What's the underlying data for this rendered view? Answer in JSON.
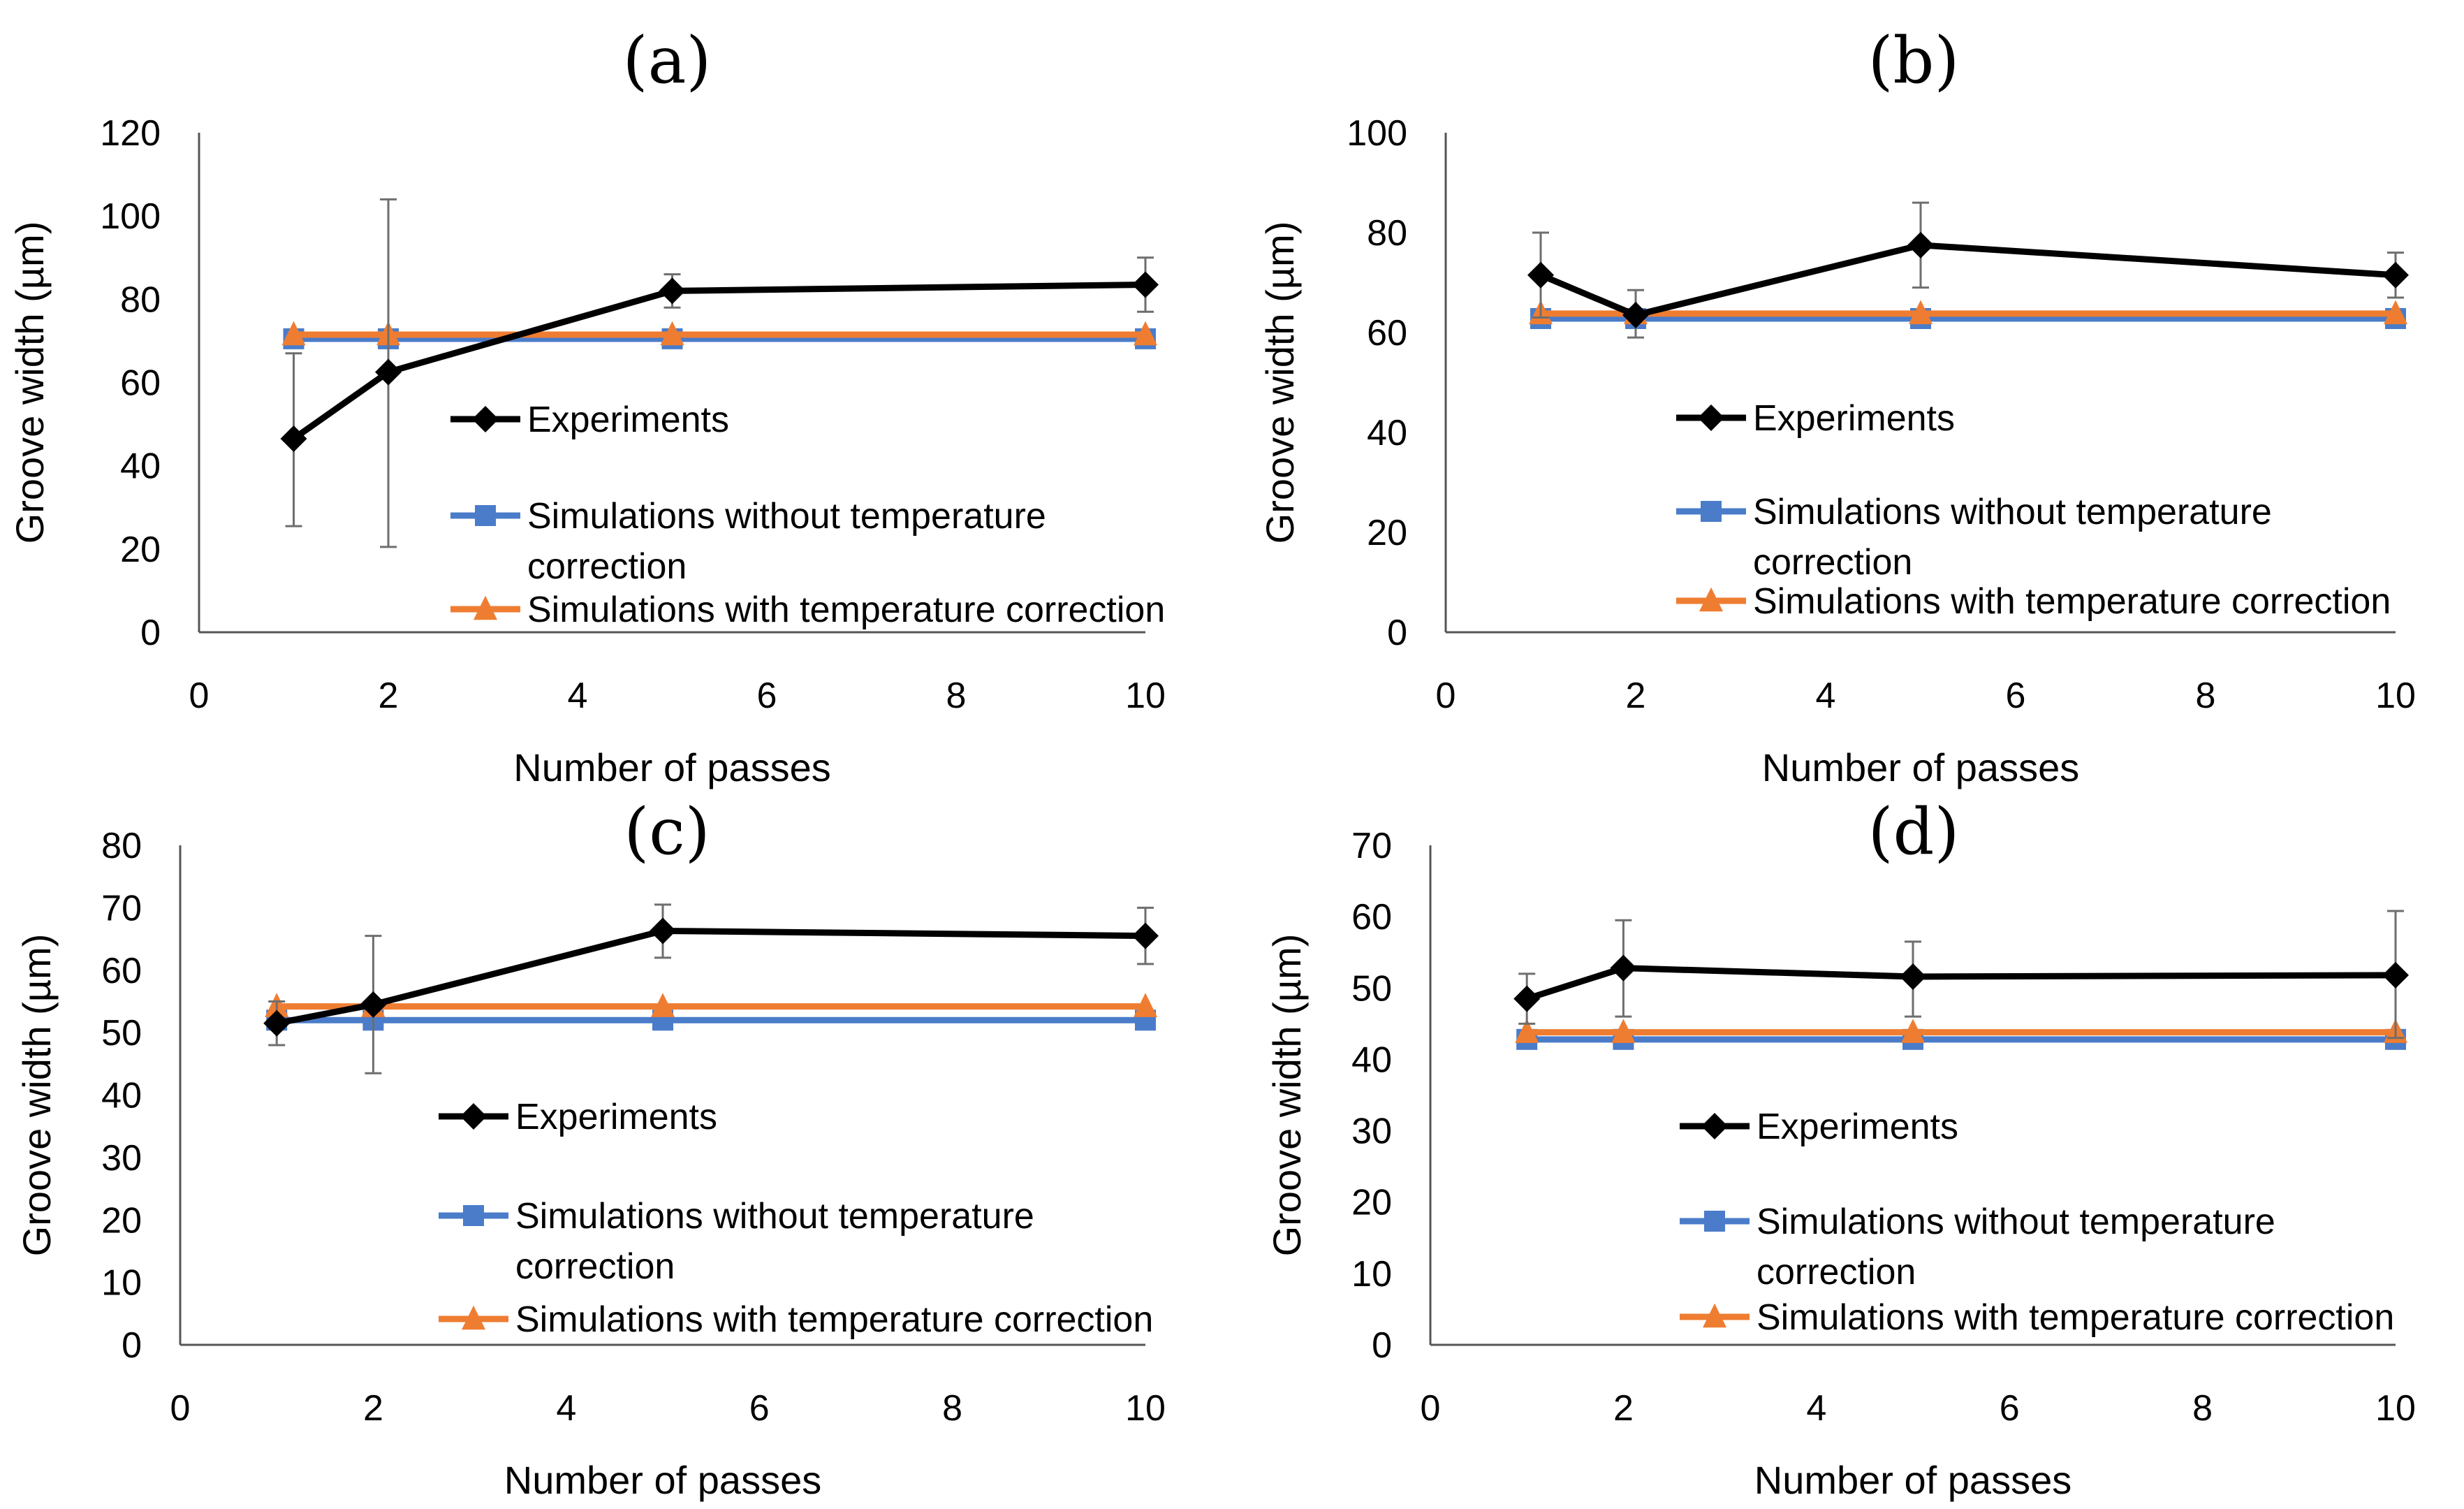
{
  "colors": {
    "experiments": "#000000",
    "sim_without": "#4a7cc9",
    "sim_with": "#ef7d31",
    "axis": "#555555",
    "errorbar": "#6e6e6e"
  },
  "legend": {
    "experiments": "Experiments",
    "sim_without_line1": "Simulations without temperature",
    "sim_without_line2": "correction",
    "sim_with": "Simulations with temperature correction"
  },
  "chart_data": [
    {
      "panel": "(a)",
      "type": "line",
      "xlabel": "Number of passes",
      "ylabel": "Groove width (µm)",
      "xlim": [
        0,
        10
      ],
      "ylim": [
        0,
        120
      ],
      "xticks": [
        "0",
        "2",
        "4",
        "6",
        "8",
        "10"
      ],
      "yticks": [
        "0",
        "20",
        "40",
        "60",
        "80",
        "100",
        "120"
      ],
      "x": [
        1,
        2,
        5,
        10
      ],
      "series": [
        {
          "name": "Experiments",
          "values": [
            46.5,
            62.5,
            82,
            83.5
          ],
          "error_low": [
            25.5,
            20.5,
            78,
            77
          ],
          "error_high": [
            67,
            104,
            86,
            90
          ]
        },
        {
          "name": "Simulations without temperature correction",
          "values": [
            70.5,
            70.5,
            70.5,
            70.5
          ]
        },
        {
          "name": "Simulations with temperature correction",
          "values": [
            71.5,
            71.5,
            71.5,
            71.5
          ]
        }
      ]
    },
    {
      "panel": "(b)",
      "type": "line",
      "xlabel": "Number of passes",
      "ylabel": "Groove width (µm)",
      "xlim": [
        0,
        10
      ],
      "ylim": [
        0,
        100
      ],
      "xticks": [
        "0",
        "2",
        "4",
        "6",
        "8",
        "10"
      ],
      "yticks": [
        "0",
        "20",
        "40",
        "60",
        "80",
        "100"
      ],
      "x": [
        1,
        2,
        5,
        10
      ],
      "series": [
        {
          "name": "Experiments",
          "values": [
            71.5,
            63.5,
            77.5,
            71.5
          ],
          "error_low": [
            63,
            59,
            69,
            67
          ],
          "error_high": [
            80,
            68.5,
            86,
            76
          ]
        },
        {
          "name": "Simulations without temperature correction",
          "values": [
            62.8,
            62.8,
            62.8,
            62.8
          ]
        },
        {
          "name": "Simulations with temperature correction",
          "values": [
            63.8,
            63.8,
            63.8,
            63.8
          ]
        }
      ]
    },
    {
      "panel": "(c)",
      "type": "line",
      "xlabel": "Number of passes",
      "ylabel": "Groove width (µm)",
      "xlim": [
        0,
        10
      ],
      "ylim": [
        0,
        80
      ],
      "xticks": [
        "0",
        "2",
        "4",
        "6",
        "8",
        "10"
      ],
      "yticks": [
        "0",
        "10",
        "20",
        "30",
        "40",
        "50",
        "60",
        "70",
        "80"
      ],
      "x": [
        1,
        2,
        5,
        10
      ],
      "series": [
        {
          "name": "Experiments",
          "values": [
            51.5,
            54.5,
            66.3,
            65.5
          ],
          "error_low": [
            48,
            43.5,
            62,
            61
          ],
          "error_high": [
            55,
            65.5,
            70.5,
            70
          ]
        },
        {
          "name": "Simulations without temperature correction",
          "values": [
            52,
            52,
            52,
            52
          ]
        },
        {
          "name": "Simulations with temperature correction",
          "values": [
            54.2,
            54.2,
            54.2,
            54.2
          ]
        }
      ]
    },
    {
      "panel": "(d)",
      "type": "line",
      "xlabel": "Number of passes",
      "ylabel": "Groove width (µm)",
      "xlim": [
        0,
        10
      ],
      "ylim": [
        0,
        70
      ],
      "xticks": [
        "0",
        "2",
        "4",
        "6",
        "8",
        "10"
      ],
      "yticks": [
        "0",
        "10",
        "20",
        "30",
        "40",
        "50",
        "60",
        "70"
      ],
      "x": [
        1,
        2,
        5,
        10
      ],
      "series": [
        {
          "name": "Experiments",
          "values": [
            48.5,
            52.8,
            51.6,
            51.8
          ],
          "error_low": [
            45,
            46,
            46,
            43
          ],
          "error_high": [
            52,
            59.5,
            56.5,
            60.8
          ]
        },
        {
          "name": "Simulations without temperature correction",
          "values": [
            42.8,
            42.8,
            42.8,
            42.8
          ]
        },
        {
          "name": "Simulations with temperature correction",
          "values": [
            43.8,
            43.8,
            43.8,
            43.8
          ]
        }
      ]
    }
  ]
}
